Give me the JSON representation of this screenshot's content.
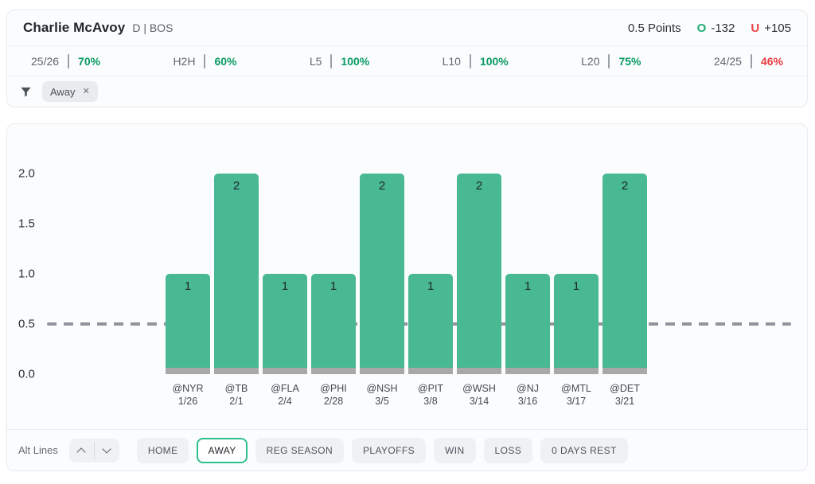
{
  "player": {
    "name": "Charlie McAvoy",
    "meta": "D | BOS"
  },
  "market": {
    "line_label": "0.5 Points",
    "over_prefix": "O",
    "over_odds": "-132",
    "under_prefix": "U",
    "under_odds": "+105"
  },
  "splits": [
    {
      "label": "25/26",
      "value": "70%",
      "color": "green"
    },
    {
      "label": "H2H",
      "value": "60%",
      "color": "green"
    },
    {
      "label": "L5",
      "value": "100%",
      "color": "green"
    },
    {
      "label": "L10",
      "value": "100%",
      "color": "green"
    },
    {
      "label": "L20",
      "value": "75%",
      "color": "green"
    },
    {
      "label": "24/25",
      "value": "46%",
      "color": "red"
    }
  ],
  "filters": {
    "chips": [
      {
        "label": "Away"
      }
    ]
  },
  "chart_data": {
    "type": "bar",
    "categories": [
      "@NYR",
      "@TB",
      "@FLA",
      "@PHI",
      "@NSH",
      "@PIT",
      "@WSH",
      "@NJ",
      "@MTL",
      "@DET"
    ],
    "dates": [
      "1/26",
      "2/1",
      "2/4",
      "2/28",
      "3/5",
      "3/8",
      "3/14",
      "3/16",
      "3/17",
      "3/21"
    ],
    "values": [
      1,
      2,
      1,
      1,
      2,
      1,
      2,
      1,
      1,
      2
    ],
    "title": "",
    "xlabel": "",
    "ylabel": "",
    "yticks": [
      0.0,
      0.5,
      1.0,
      1.5,
      2.0
    ],
    "ylim": [
      0,
      2.2
    ],
    "reference_line": 0.5,
    "grid": false,
    "legend": "none"
  },
  "toolbar": {
    "alt_lines_label": "Alt Lines",
    "buttons": [
      {
        "label": "HOME",
        "active": false
      },
      {
        "label": "AWAY",
        "active": true
      },
      {
        "label": "REG SEASON",
        "active": false
      },
      {
        "label": "PLAYOFFS",
        "active": false
      },
      {
        "label": "WIN",
        "active": false
      },
      {
        "label": "LOSS",
        "active": false
      },
      {
        "label": "0 DAYS REST",
        "active": false
      }
    ]
  },
  "colors": {
    "green_value": "#0a9b63",
    "red_value": "#e83a40",
    "over_green": "#1fad73",
    "under_red": "#ef4348",
    "bar_green": "#48b993",
    "bar_base_gray": "#a8a8a8",
    "dash_gray": "#90959b",
    "active_button_border": "#2fbf8d"
  }
}
